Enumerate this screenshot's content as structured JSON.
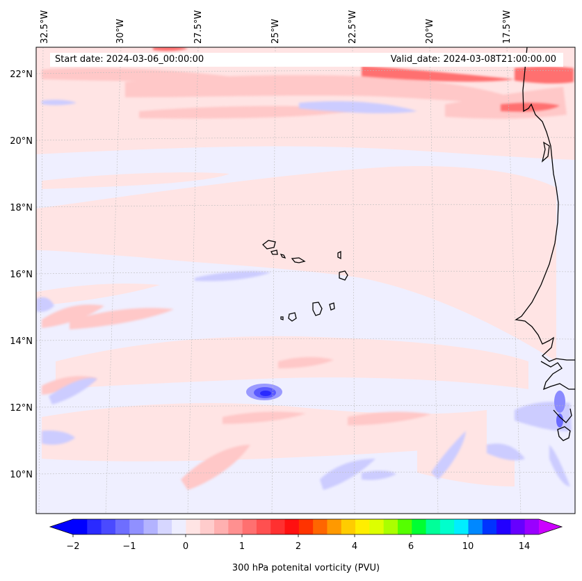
{
  "map": {
    "start_date": "Start date: 2024-03-06_00:00:00",
    "valid_date": "Valid_date: 2024-03-08T21:00:00.00",
    "lon_labels": [
      "32.5°W",
      "30°W",
      "27.5°W",
      "25°W",
      "22.5°W",
      "20°W",
      "17.5°W"
    ],
    "lat_labels": [
      "22°N",
      "20°N",
      "18°N",
      "16°N",
      "14°N",
      "12°N",
      "10°N"
    ]
  },
  "colorbar": {
    "title": "300 hPa potenital vorticity (PVU)",
    "tick_labels": [
      "−2",
      "−1",
      "0",
      "1",
      "2",
      "4",
      "6",
      "10",
      "14"
    ],
    "levels": [
      "#0000ff",
      "#2a2aff",
      "#4a4aff",
      "#6e6eff",
      "#9090ff",
      "#b3b3ff",
      "#d6d6ff",
      "#eeeeff",
      "#ffe4e4",
      "#ffcccc",
      "#ffb0b0",
      "#ff9090",
      "#ff7070",
      "#ff5050",
      "#ff3030",
      "#ff1010",
      "#ff3300",
      "#ff6600",
      "#ff9900",
      "#ffcc00",
      "#ffee00",
      "#ddff00",
      "#aaff00",
      "#55ff00",
      "#00ff33",
      "#00ff99",
      "#00ffcc",
      "#00eeff",
      "#0088ff",
      "#0033ff",
      "#2200ff",
      "#6600ff",
      "#9900ff"
    ],
    "extend_low": "#0000ff",
    "extend_high": "#cc00ff"
  },
  "colors": {
    "background_pv": "#efefff",
    "weak_positive": "#ffe4e4",
    "moderate_positive": "#ffc8c8",
    "strong_positive": "#ff7070",
    "weak_negative": "#d6d6ff",
    "strong_negative": "#2a2aff",
    "coast": "#000000"
  }
}
